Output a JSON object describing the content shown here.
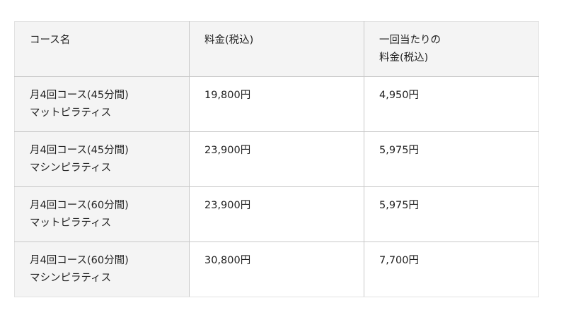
{
  "table": {
    "headers": [
      {
        "lines": [
          "コース名"
        ]
      },
      {
        "lines": [
          "料金(税込)"
        ]
      },
      {
        "lines": [
          "一回当たりの",
          "料金(税込)"
        ]
      }
    ],
    "rows": [
      {
        "course": [
          "月4回コース(45分間)",
          "マットピラティス"
        ],
        "price": "19,800円",
        "per_session": "4,950円"
      },
      {
        "course": [
          "月4回コース(45分間)",
          "マシンピラティス"
        ],
        "price": "23,900円",
        "per_session": "5,975円"
      },
      {
        "course": [
          "月4回コース(60分間)",
          "マットピラティス"
        ],
        "price": "23,900円",
        "per_session": "5,975円"
      },
      {
        "course": [
          "月4回コース(60分間)",
          "マシンピラティス"
        ],
        "price": "30,800円",
        "per_session": "7,700円"
      }
    ]
  }
}
